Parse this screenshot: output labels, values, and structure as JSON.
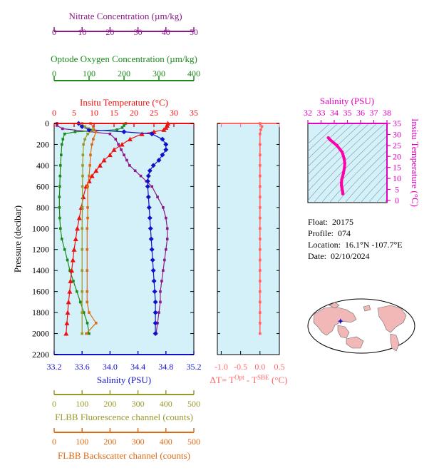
{
  "chart_data": [
    {
      "type": "line",
      "panel": "profile",
      "y_axis": {
        "label": "Pressure (decibar)",
        "lim": [
          2200,
          0
        ],
        "ticks": [
          0,
          200,
          400,
          600,
          800,
          1000,
          1200,
          1400,
          1600,
          1800,
          2000,
          2200
        ]
      },
      "axes": {
        "nitrate": {
          "label": "Nitrate Concentration (µm/kg)",
          "lim": [
            0,
            50
          ],
          "ticks": [
            0,
            10,
            20,
            30,
            40,
            50
          ],
          "color": "#8b1a89"
        },
        "oxygen": {
          "label": "Optode Oxygen Concentration (µm/kg)",
          "lim": [
            0,
            400
          ],
          "ticks": [
            0,
            100,
            200,
            300,
            400
          ],
          "color": "#1a8a1a"
        },
        "temperature": {
          "label": "Insitu Temperature (°C)",
          "lim": [
            0,
            35
          ],
          "ticks": [
            0,
            5,
            10,
            15,
            20,
            25,
            30,
            35
          ],
          "color": "#ee1111"
        },
        "salinity": {
          "label": "Salinity (PSU)",
          "lim": [
            33.2,
            35.2
          ],
          "ticks": [
            33.2,
            33.6,
            34.0,
            34.4,
            34.8,
            35.2
          ],
          "tick_labels": [
            "33.2",
            "33.6",
            "34.0",
            "34.4",
            "34.8",
            "35.2"
          ],
          "color": "#1111cc"
        },
        "fluorescence": {
          "label": "FLBB Fluorescence channel (counts)",
          "lim": [
            0,
            500
          ],
          "ticks": [
            0,
            100,
            200,
            300,
            400,
            500
          ],
          "color": "#99992a"
        },
        "backscatter": {
          "label": "FLBB Backscatter channel (counts)",
          "lim": [
            0,
            500
          ],
          "ticks": [
            0,
            100,
            200,
            300,
            400,
            500
          ],
          "color": "#e06a12"
        }
      },
      "series": [
        {
          "name": "Nitrate",
          "axis": "nitrate",
          "color": "#8b1a89",
          "points": [
            [
              1,
              0
            ],
            [
              1,
              20
            ],
            [
              3,
              50
            ],
            [
              20,
              100
            ],
            [
              22,
              150
            ],
            [
              23,
              200
            ],
            [
              24,
              250
            ],
            [
              25,
              300
            ],
            [
              26,
              350
            ],
            [
              27,
              400
            ],
            [
              29,
              450
            ],
            [
              31,
              500
            ],
            [
              33,
              550
            ],
            [
              35,
              600
            ],
            [
              37,
              700
            ],
            [
              39,
              800
            ],
            [
              40,
              900
            ],
            [
              40.5,
              1000
            ],
            [
              40.5,
              1100
            ],
            [
              40,
              1200
            ],
            [
              39.5,
              1300
            ],
            [
              39,
              1400
            ],
            [
              38.5,
              1500
            ],
            [
              38,
              1600
            ],
            [
              38,
              1700
            ],
            [
              37.5,
              1800
            ],
            [
              37,
              1900
            ],
            [
              36.5,
              2000
            ]
          ]
        },
        {
          "name": "Oxygen",
          "axis": "oxygen",
          "color": "#1a8a1a",
          "points": [
            [
              205,
              0
            ],
            [
              200,
              20
            ],
            [
              195,
              40
            ],
            [
              180,
              60
            ],
            [
              60,
              80
            ],
            [
              30,
              100
            ],
            [
              25,
              150
            ],
            [
              22,
              200
            ],
            [
              20,
              300
            ],
            [
              18,
              400
            ],
            [
              17,
              500
            ],
            [
              16,
              600
            ],
            [
              15,
              700
            ],
            [
              15,
              800
            ],
            [
              16,
              900
            ],
            [
              18,
              1000
            ],
            [
              22,
              1100
            ],
            [
              30,
              1200
            ],
            [
              38,
              1300
            ],
            [
              45,
              1400
            ],
            [
              55,
              1500
            ],
            [
              65,
              1600
            ],
            [
              75,
              1700
            ],
            [
              85,
              1800
            ],
            [
              95,
              1900
            ],
            [
              100,
              2000
            ]
          ]
        },
        {
          "name": "Temperature",
          "axis": "temperature",
          "color": "#ee1111",
          "points": [
            [
              28.5,
              0
            ],
            [
              28.3,
              20
            ],
            [
              28,
              40
            ],
            [
              27.5,
              60
            ],
            [
              25,
              80
            ],
            [
              22,
              100
            ],
            [
              19,
              150
            ],
            [
              17,
              200
            ],
            [
              15,
              250
            ],
            [
              14,
              300
            ],
            [
              12.5,
              350
            ],
            [
              11.5,
              400
            ],
            [
              10.5,
              450
            ],
            [
              9.5,
              500
            ],
            [
              8.8,
              550
            ],
            [
              8,
              600
            ],
            [
              7.3,
              700
            ],
            [
              6.8,
              800
            ],
            [
              6.3,
              900
            ],
            [
              5.8,
              1000
            ],
            [
              5.4,
              1100
            ],
            [
              5,
              1200
            ],
            [
              4.7,
              1300
            ],
            [
              4.4,
              1400
            ],
            [
              4.1,
              1500
            ],
            [
              3.9,
              1600
            ],
            [
              3.6,
              1700
            ],
            [
              3.4,
              1800
            ],
            [
              3.2,
              1900
            ],
            [
              3,
              2000
            ]
          ]
        },
        {
          "name": "Salinity",
          "axis": "salinity",
          "color": "#1111cc",
          "points": [
            [
              33.55,
              0
            ],
            [
              33.6,
              30
            ],
            [
              33.7,
              60
            ],
            [
              34.2,
              80
            ],
            [
              34.6,
              100
            ],
            [
              34.75,
              150
            ],
            [
              34.8,
              200
            ],
            [
              34.8,
              250
            ],
            [
              34.75,
              300
            ],
            [
              34.7,
              350
            ],
            [
              34.62,
              400
            ],
            [
              34.57,
              450
            ],
            [
              34.55,
              500
            ],
            [
              34.54,
              550
            ],
            [
              34.54,
              600
            ],
            [
              34.55,
              700
            ],
            [
              34.56,
              800
            ],
            [
              34.57,
              900
            ],
            [
              34.58,
              1000
            ],
            [
              34.59,
              1100
            ],
            [
              34.6,
              1200
            ],
            [
              34.61,
              1300
            ],
            [
              34.62,
              1400
            ],
            [
              34.63,
              1500
            ],
            [
              34.64,
              1600
            ],
            [
              34.65,
              1700
            ],
            [
              34.65,
              1800
            ],
            [
              34.65,
              1900
            ],
            [
              34.65,
              2000
            ]
          ]
        },
        {
          "name": "Fluorescence",
          "axis": "fluorescence",
          "color": "#99992a",
          "points": [
            [
              100,
              0
            ],
            [
              110,
              30
            ],
            [
              140,
              60
            ],
            [
              120,
              100
            ],
            [
              110,
              150
            ],
            [
              105,
              200
            ],
            [
              103,
              300
            ],
            [
              102,
              400
            ],
            [
              102,
              500
            ],
            [
              101,
              600
            ],
            [
              101,
              800
            ],
            [
              100,
              1000
            ],
            [
              100,
              1200
            ],
            [
              100,
              1400
            ],
            [
              100,
              1600
            ],
            [
              100,
              1800
            ],
            [
              100,
              2000
            ]
          ]
        },
        {
          "name": "Backscatter",
          "axis": "backscatter",
          "color": "#e06a12",
          "points": [
            [
              130,
              0
            ],
            [
              140,
              30
            ],
            [
              150,
              80
            ],
            [
              140,
              150
            ],
            [
              135,
              200
            ],
            [
              130,
              300
            ],
            [
              128,
              400
            ],
            [
              125,
              500
            ],
            [
              120,
              600
            ],
            [
              120,
              800
            ],
            [
              120,
              900
            ],
            [
              118,
              1000
            ],
            [
              118,
              1200
            ],
            [
              118,
              1400
            ],
            [
              118,
              1600
            ],
            [
              118,
              1700
            ],
            [
              125,
              1800
            ],
            [
              150,
              1900
            ],
            [
              115,
              2000
            ]
          ]
        }
      ]
    },
    {
      "type": "line",
      "panel": "delta-temperature",
      "xlabel": "ΔT= T",
      "xlabel_sup1": "Opt",
      "xlabel_mid": " - T",
      "xlabel_sup2": "SBE",
      "xlabel_tail": " (°C)",
      "xlim": [
        -1.1,
        0.5
      ],
      "xticks": [
        -1.0,
        -0.5,
        0.0,
        0.5
      ],
      "xtick_labels": [
        "-1.0",
        "-0.5",
        "0.0",
        "0.5"
      ],
      "ylim": [
        2200,
        0
      ],
      "color": "#ff6666",
      "points": [
        [
          0.0,
          0
        ],
        [
          0.05,
          30
        ],
        [
          0.02,
          60
        ],
        [
          0.0,
          100
        ],
        [
          0.0,
          200
        ],
        [
          0.0,
          300
        ],
        [
          0.0,
          400
        ],
        [
          0.0,
          500
        ],
        [
          0.0,
          600
        ],
        [
          0.0,
          700
        ],
        [
          0.0,
          800
        ],
        [
          0.0,
          900
        ],
        [
          0.0,
          1000
        ],
        [
          0.0,
          1100
        ],
        [
          0.0,
          1200
        ],
        [
          0.0,
          1300
        ],
        [
          0.0,
          1400
        ],
        [
          0.0,
          1500
        ],
        [
          0.0,
          1600
        ],
        [
          0.0,
          1700
        ],
        [
          0.0,
          1800
        ],
        [
          0.0,
          1900
        ],
        [
          0.0,
          2000
        ]
      ]
    },
    {
      "type": "scatter",
      "panel": "ts-diagram",
      "xlabel": "Salinity (PSU)",
      "ylabel": "Insitu Temperature (°C)",
      "xlim": [
        32,
        38
      ],
      "ylim": [
        -1,
        35
      ],
      "xticks": [
        32,
        33,
        34,
        35,
        36,
        37,
        38
      ],
      "yticks": [
        0,
        5,
        10,
        15,
        20,
        25,
        30,
        35
      ],
      "color": "#ff00aa",
      "points": [
        [
          33.55,
          28.5
        ],
        [
          33.7,
          27.5
        ],
        [
          34.2,
          25
        ],
        [
          34.6,
          22
        ],
        [
          34.75,
          19
        ],
        [
          34.8,
          17
        ],
        [
          34.78,
          15
        ],
        [
          34.7,
          12.5
        ],
        [
          34.62,
          10.5
        ],
        [
          34.57,
          9.5
        ],
        [
          34.55,
          8
        ],
        [
          34.55,
          6.8
        ],
        [
          34.58,
          5.8
        ],
        [
          34.6,
          5
        ],
        [
          34.62,
          4.4
        ],
        [
          34.64,
          3.9
        ],
        [
          34.65,
          3.4
        ],
        [
          34.65,
          3
        ]
      ]
    }
  ],
  "info": {
    "float_label": "Float:",
    "float_value": "20175",
    "profile_label": "Profile:",
    "profile_value": "074",
    "location_label": "Location:",
    "location_value": "16.1°N  -107.7°E",
    "date_label": "Date:",
    "date_value": "02/10/2024"
  },
  "map": {
    "marker_lat": 16.1,
    "marker_lon": -107.7,
    "land_color": "#f2b8b8",
    "ocean_color": "#ffffff",
    "marker_color": "#1111cc"
  },
  "colors": {
    "plot_bg": "#d4f0f8"
  }
}
